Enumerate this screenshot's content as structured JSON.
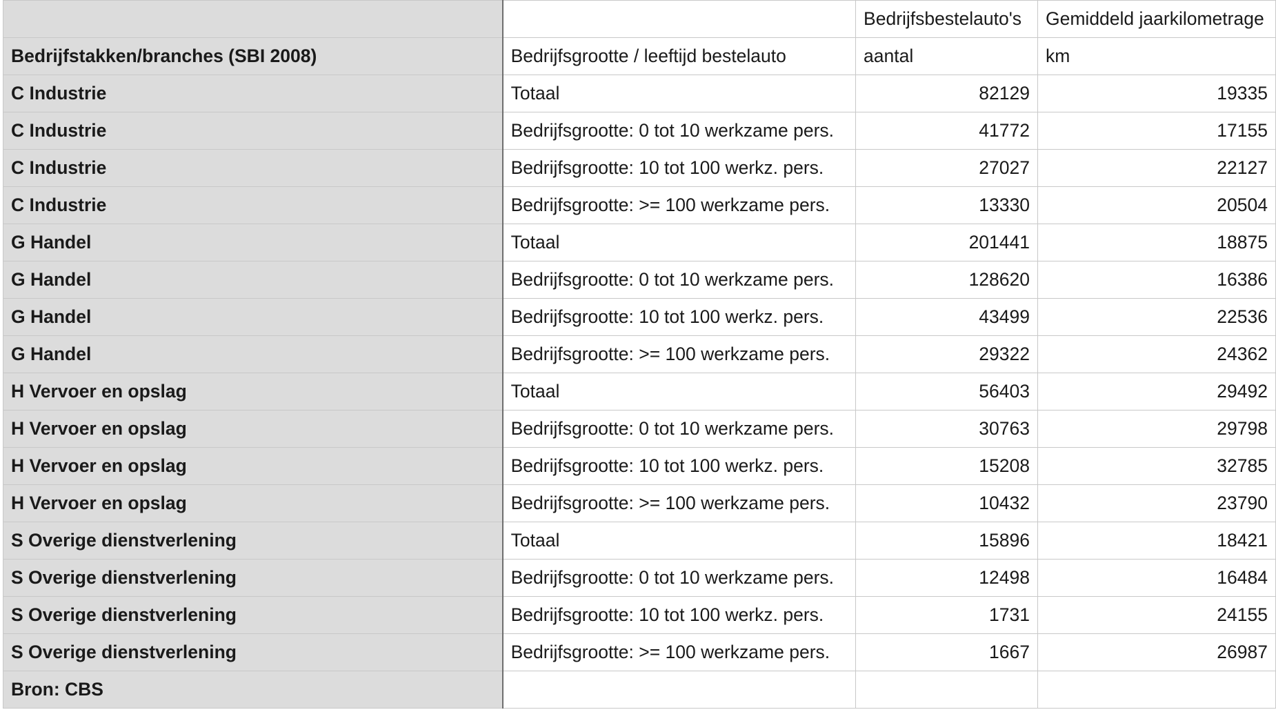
{
  "table": {
    "column_headers": [
      "",
      "",
      "Bedrijfsbestelauto's",
      "Gemiddeld jaarkilometrage"
    ],
    "unit_row": [
      "Bedrijfstakken/branches (SBI 2008)",
      "Bedrijfsgrootte / leeftijd bestelauto",
      "aantal",
      "km"
    ],
    "rows": [
      [
        "C Industrie",
        "Totaal",
        "82129",
        "19335"
      ],
      [
        "C Industrie",
        "Bedrijfsgrootte: 0 tot 10 werkzame pers.",
        "41772",
        "17155"
      ],
      [
        "C Industrie",
        "Bedrijfsgrootte: 10 tot 100 werkz. pers.",
        "27027",
        "22127"
      ],
      [
        "C Industrie",
        "Bedrijfsgrootte: >= 100 werkzame pers.",
        "13330",
        "20504"
      ],
      [
        "G Handel",
        "Totaal",
        "201441",
        "18875"
      ],
      [
        "G Handel",
        "Bedrijfsgrootte: 0 tot 10 werkzame pers.",
        "128620",
        "16386"
      ],
      [
        "G Handel",
        "Bedrijfsgrootte: 10 tot 100 werkz. pers.",
        "43499",
        "22536"
      ],
      [
        "G Handel",
        "Bedrijfsgrootte: >= 100 werkzame pers.",
        "29322",
        "24362"
      ],
      [
        "H Vervoer en opslag",
        "Totaal",
        "56403",
        "29492"
      ],
      [
        "H Vervoer en opslag",
        "Bedrijfsgrootte: 0 tot 10 werkzame pers.",
        "30763",
        "29798"
      ],
      [
        "H Vervoer en opslag",
        "Bedrijfsgrootte: 10 tot 100 werkz. pers.",
        "15208",
        "32785"
      ],
      [
        "H Vervoer en opslag",
        "Bedrijfsgrootte: >= 100 werkzame pers.",
        "10432",
        "23790"
      ],
      [
        "S Overige dienstverlening",
        "Totaal",
        "15896",
        "18421"
      ],
      [
        "S Overige dienstverlening",
        "Bedrijfsgrootte: 0 tot 10 werkzame pers.",
        "12498",
        "16484"
      ],
      [
        "S Overige dienstverlening",
        "Bedrijfsgrootte: 10 tot 100 werkz. pers.",
        "1731",
        "24155"
      ],
      [
        "S Overige dienstverlening",
        "Bedrijfsgrootte: >= 100 werkzame pers.",
        "1667",
        "26987"
      ]
    ],
    "footer": [
      "Bron: CBS",
      "",
      "",
      ""
    ]
  }
}
